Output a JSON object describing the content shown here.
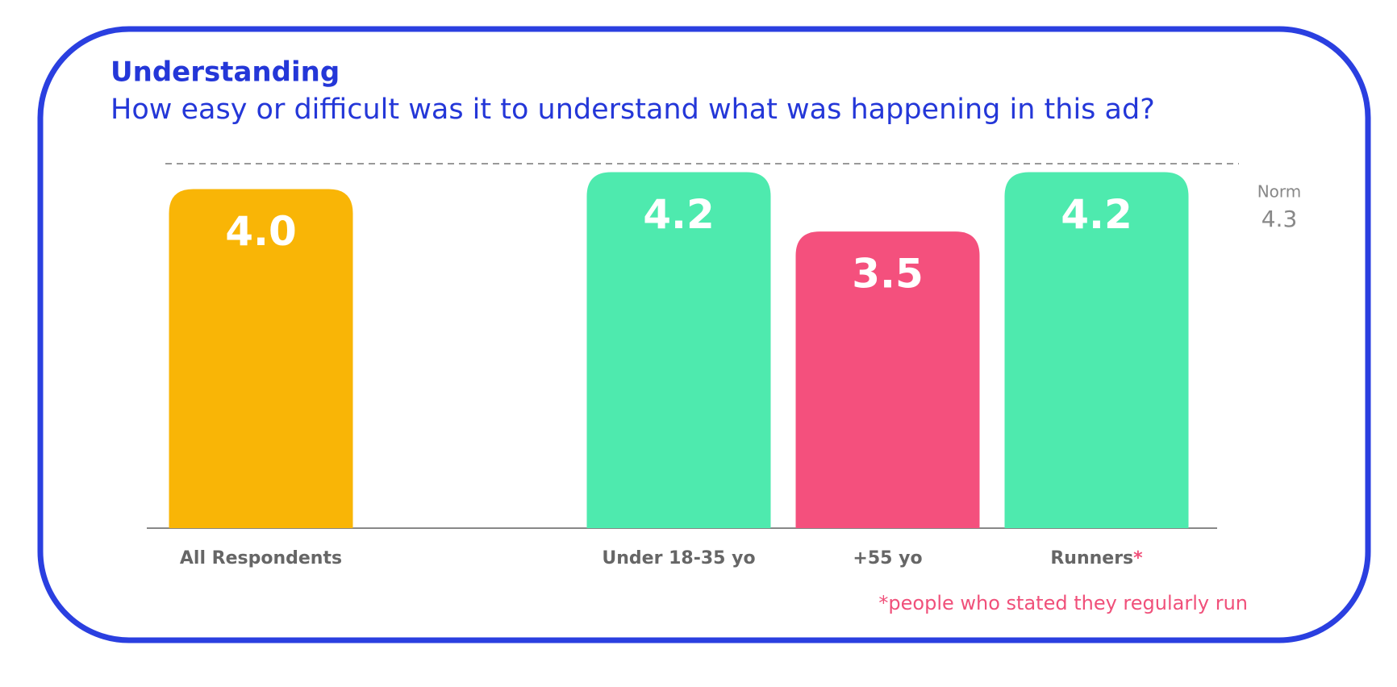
{
  "chart_data": {
    "type": "bar",
    "title": "Understanding",
    "subtitle": "How easy or difficult was it to understand what was happening in this ad?",
    "categories": [
      "All Respondents",
      null,
      "Under 18-35 yo",
      "+55 yo",
      "Runners"
    ],
    "values": [
      4,
      null,
      4.2,
      3.5,
      4.2
    ],
    "value_labels": [
      "4.0",
      null,
      "4.2",
      "3.5",
      "4.2"
    ],
    "colors": [
      "#f9b506",
      null,
      "#4eeaae",
      "#f4507d",
      "#4eeaae"
    ],
    "norm": {
      "label": "Norm",
      "value": 4.3
    },
    "footnote": {
      "marker": "*",
      "text": "people who stated they regularly run",
      "category": "Runners"
    }
  }
}
